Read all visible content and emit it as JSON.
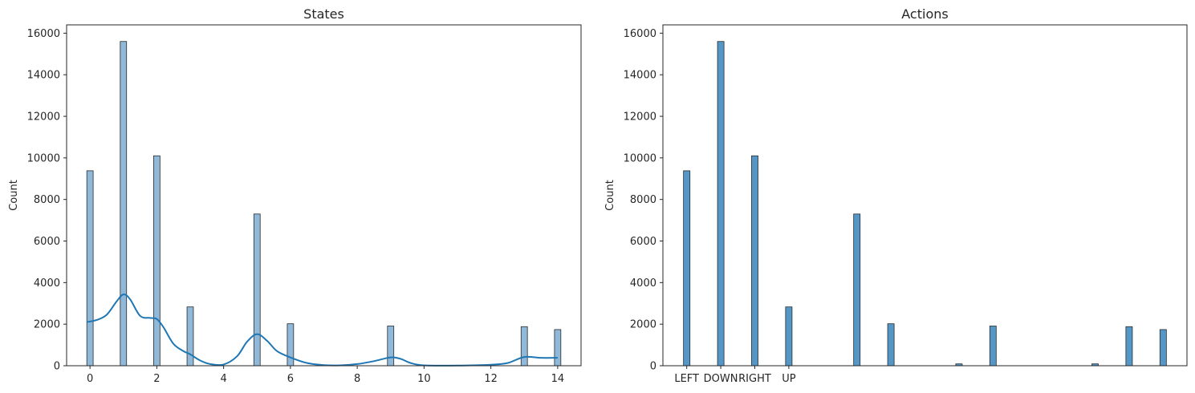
{
  "chart_data": [
    {
      "type": "bar",
      "title": "States",
      "xlabel": "",
      "ylabel": "Count",
      "xlim": [
        -0.7,
        14.7
      ],
      "ylim": [
        0,
        16400
      ],
      "x_ticks": [
        0,
        2,
        4,
        6,
        8,
        10,
        12,
        14
      ],
      "y_ticks": [
        0,
        2000,
        4000,
        6000,
        8000,
        10000,
        12000,
        14000,
        16000
      ],
      "bar_width": 0.19,
      "x": [
        0,
        1,
        2,
        3,
        5,
        6,
        9,
        13,
        14
      ],
      "values": [
        9380,
        15600,
        10100,
        2830,
        7300,
        2020,
        1910,
        1880,
        1740
      ],
      "bar_color": "#8fb8d9",
      "edge_color": "#2b2b2b",
      "kde": {
        "color": "#1f77b4",
        "x": [
          -0.1,
          0.2,
          0.5,
          0.8,
          1.0,
          1.2,
          1.5,
          1.8,
          2.0,
          2.2,
          2.5,
          2.8,
          3.0,
          3.3,
          3.6,
          4.0,
          4.4,
          4.7,
          5.0,
          5.3,
          5.6,
          6.0,
          6.5,
          7.0,
          7.5,
          8.0,
          8.5,
          9.0,
          9.3,
          9.6,
          10.0,
          11.0,
          12.0,
          12.5,
          13.0,
          13.5,
          14.0
        ],
        "y": [
          2100,
          2200,
          2450,
          3100,
          3430,
          3200,
          2400,
          2300,
          2250,
          1850,
          1050,
          700,
          550,
          250,
          80,
          60,
          450,
          1150,
          1520,
          1200,
          700,
          400,
          130,
          30,
          20,
          80,
          220,
          400,
          330,
          130,
          20,
          10,
          50,
          130,
          420,
          380,
          380
        ]
      }
    },
    {
      "type": "bar",
      "title": "Actions",
      "xlabel": "",
      "ylabel": "Count",
      "xlim": [
        -0.7,
        14.7
      ],
      "ylim": [
        0,
        16400
      ],
      "x_ticks": [
        0,
        1,
        2,
        3
      ],
      "x_tick_labels": [
        "LEFT",
        "DOWN",
        "RIGHT",
        "UP"
      ],
      "y_ticks": [
        0,
        2000,
        4000,
        6000,
        8000,
        10000,
        12000,
        14000,
        16000
      ],
      "bar_width": 0.19,
      "x": [
        0,
        1,
        2,
        3,
        5,
        6,
        8,
        9,
        12,
        13,
        14
      ],
      "values": [
        9380,
        15600,
        10100,
        2830,
        7300,
        2020,
        90,
        1910,
        90,
        1880,
        1740
      ],
      "bar_color": "#5497c7",
      "edge_color": "#2b2b2b"
    }
  ]
}
